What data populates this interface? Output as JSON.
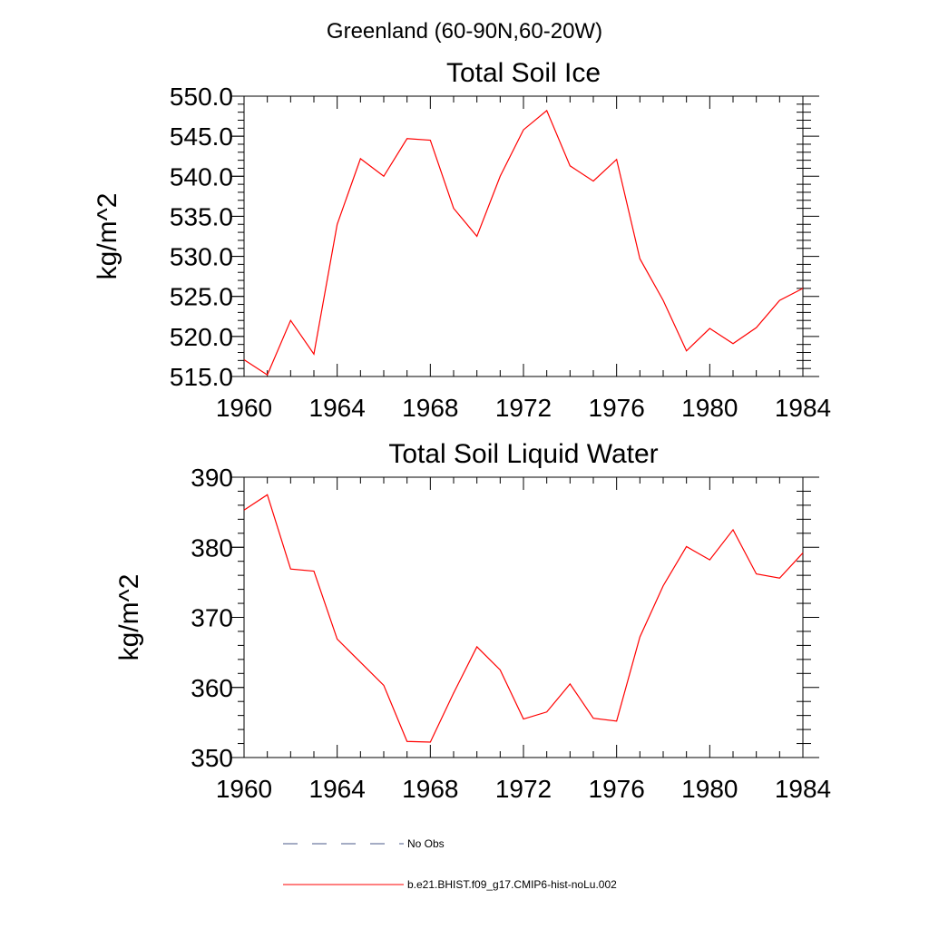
{
  "figure_title": "Greenland (60-90N,60-20W)",
  "chart_data": [
    {
      "type": "line",
      "title": "Total Soil Ice",
      "xlabel": "",
      "ylabel": "kg/m^2",
      "xlim": [
        1960,
        1984
      ],
      "ylim": [
        515.0,
        550.0
      ],
      "x_ticks": [
        "1960",
        "1964",
        "1968",
        "1972",
        "1976",
        "1980",
        "1984"
      ],
      "y_ticks": [
        "515.0",
        "520.0",
        "525.0",
        "530.0",
        "535.0",
        "540.0",
        "545.0",
        "550.0"
      ],
      "x": [
        1960,
        1961,
        1962,
        1963,
        1964,
        1965,
        1966,
        1967,
        1968,
        1969,
        1970,
        1971,
        1972,
        1973,
        1974,
        1975,
        1976,
        1977,
        1978,
        1979,
        1980,
        1981,
        1982,
        1983,
        1984
      ],
      "series": [
        {
          "name": "b.e21.BHIST.f09_g17.CMIP6-hist-noLu.002",
          "color": "#ff0000",
          "values": [
            517.1,
            515.2,
            522.0,
            517.8,
            534.0,
            542.2,
            540.0,
            544.7,
            544.5,
            536.0,
            532.5,
            540.0,
            545.8,
            548.2,
            541.3,
            539.4,
            542.1,
            529.7,
            524.5,
            518.2,
            521.0,
            519.1,
            521.1,
            524.5,
            526.0
          ]
        }
      ]
    },
    {
      "type": "line",
      "title": "Total Soil Liquid Water",
      "xlabel": "",
      "ylabel": "kg/m^2",
      "xlim": [
        1960,
        1984
      ],
      "ylim": [
        350,
        390
      ],
      "x_ticks": [
        "1960",
        "1964",
        "1968",
        "1972",
        "1976",
        "1980",
        "1984"
      ],
      "y_ticks": [
        "350",
        "360",
        "370",
        "380",
        "390"
      ],
      "x": [
        1960,
        1961,
        1962,
        1963,
        1964,
        1965,
        1966,
        1967,
        1968,
        1969,
        1970,
        1971,
        1972,
        1973,
        1974,
        1975,
        1976,
        1977,
        1978,
        1979,
        1980,
        1981,
        1982,
        1983,
        1984
      ],
      "series": [
        {
          "name": "b.e21.BHIST.f09_g17.CMIP6-hist-noLu.002",
          "color": "#ff0000",
          "values": [
            385.3,
            387.5,
            376.9,
            376.6,
            366.9,
            363.6,
            360.3,
            352.3,
            352.2,
            359.2,
            365.8,
            362.5,
            355.5,
            356.5,
            360.5,
            355.6,
            355.2,
            367.2,
            374.5,
            380.1,
            378.2,
            382.5,
            376.2,
            375.6,
            379.2
          ]
        }
      ]
    }
  ],
  "legend": [
    {
      "label": "No Obs",
      "style": "dashed",
      "color": "#4a5a8a"
    },
    {
      "label": "b.e21.BHIST.f09_g17.CMIP6-hist-noLu.002",
      "style": "solid",
      "color": "#ff0000"
    }
  ]
}
